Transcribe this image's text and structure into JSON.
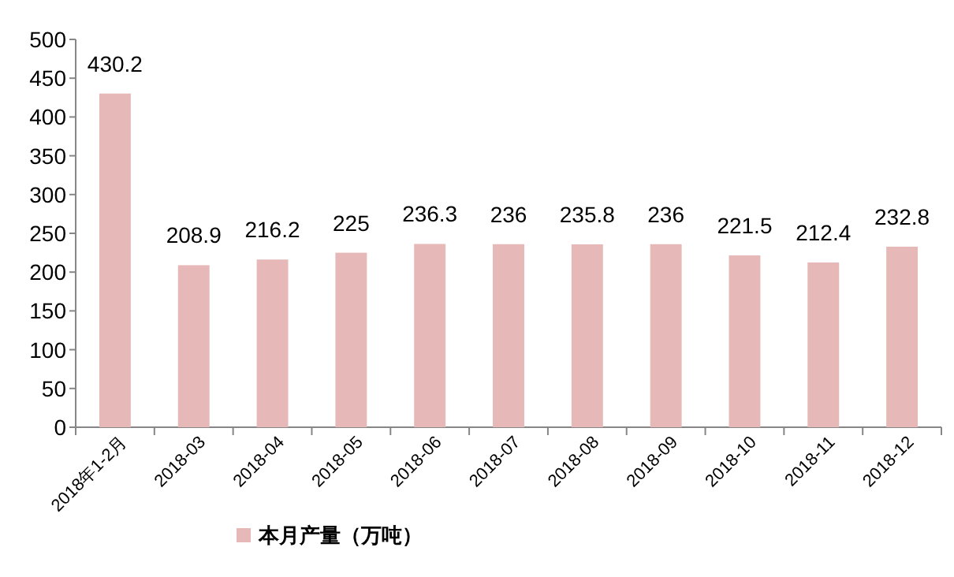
{
  "chart_data": {
    "type": "bar",
    "categories": [
      "2018年1-2月",
      "2018-03",
      "2018-04",
      "2018-05",
      "2018-06",
      "2018-07",
      "2018-08",
      "2018-09",
      "2018-10",
      "2018-11",
      "2018-12"
    ],
    "series": [
      {
        "name": "本月产量（万吨）",
        "color": "#e6b8b7",
        "values": [
          430.2,
          208.9,
          216.2,
          225,
          236.3,
          236,
          235.8,
          236,
          221.5,
          212.4,
          232.8
        ]
      }
    ],
    "ylim": [
      0,
      500
    ],
    "yticks": [
      0,
      50,
      100,
      150,
      200,
      250,
      300,
      350,
      400,
      450,
      500
    ],
    "data_labels": true,
    "grid": false,
    "legend": "bottom left"
  }
}
